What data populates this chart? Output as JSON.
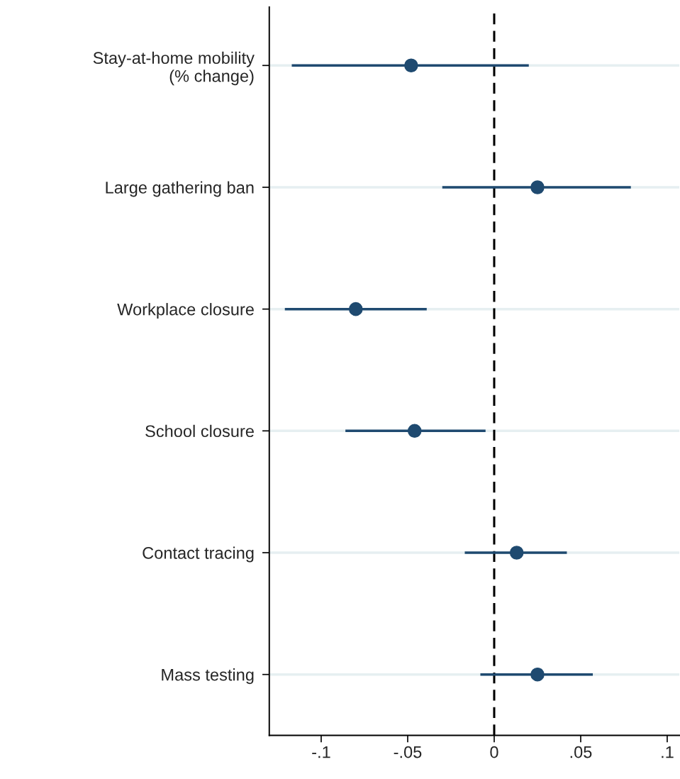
{
  "chart_data": {
    "type": "scatter",
    "orientation": "horizontal",
    "categories": [
      "Stay-at-home mobility\n(% change)",
      "Large gathering ban",
      "Workplace closure",
      "School closure",
      "Contact tracing",
      "Mass testing"
    ],
    "values": [
      -0.048,
      0.025,
      -0.08,
      -0.046,
      0.013,
      0.025
    ],
    "errors": [
      [
        -0.117,
        0.02
      ],
      [
        -0.03,
        0.079
      ],
      [
        -0.121,
        -0.039
      ],
      [
        -0.086,
        -0.005
      ],
      [
        -0.017,
        0.042
      ],
      [
        -0.008,
        0.057
      ]
    ],
    "color": "#1f4a70",
    "xlim": [
      -0.13,
      0.107
    ],
    "xticks": [
      {
        "value": -0.1,
        "label": "-.1"
      },
      {
        "value": -0.05,
        "label": "-.05"
      },
      0,
      {
        "value": 0.05,
        "label": ".05"
      },
      {
        "value": 0.1,
        "label": ".1"
      }
    ],
    "ref_lines": [
      {
        "axis": "x",
        "value": 0,
        "color": "#000000",
        "line_style": "dashed"
      }
    ],
    "grid": "y",
    "marker": "circle"
  }
}
